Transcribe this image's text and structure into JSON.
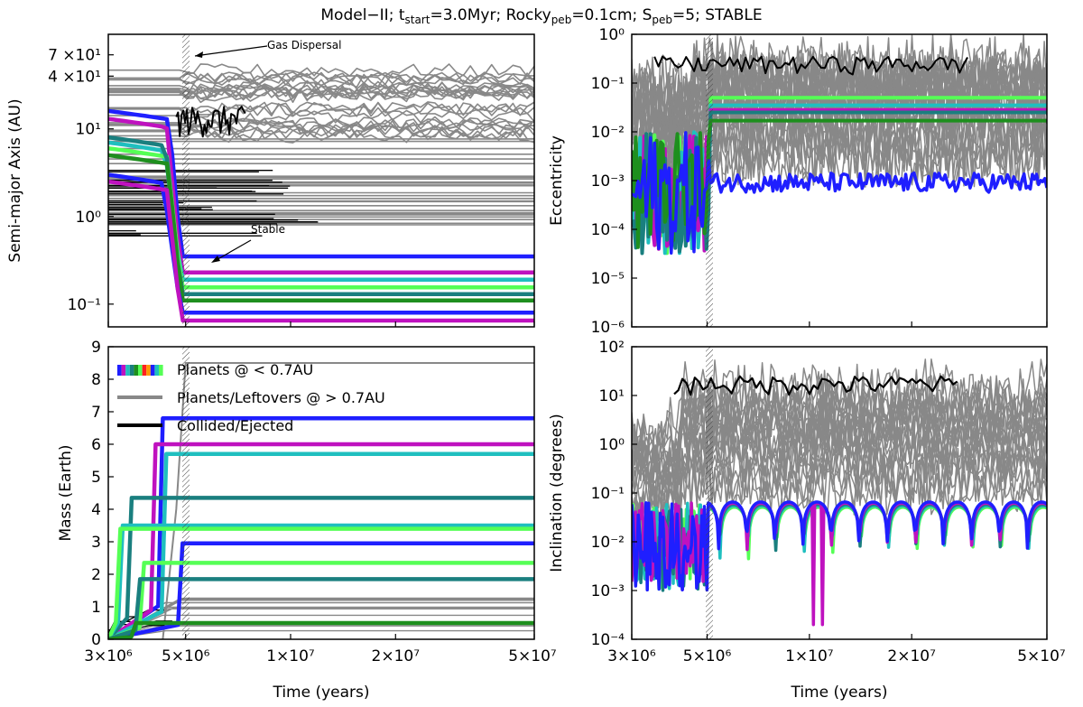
{
  "figure_title": "Model−II; t",
  "title_parts": {
    "pre": "Model−II; t",
    "sub1": "start",
    "mid1": "=3.0Myr; Rocky",
    "sub2": "peb",
    "mid2": "=0.1cm; S",
    "sub3": "peb",
    "post": "=5; STABLE"
  },
  "colors": {
    "gray": "#888888",
    "black": "#000000",
    "blue": "#1f1fff",
    "magenta": "#bf12bf",
    "cyan": "#1fbfbf",
    "teal": "#1a7f7f",
    "green": "#1e8f1e",
    "lightgreen": "#55ff55"
  },
  "chart_data": [
    {
      "type": "line",
      "panel": "top-left",
      "xlabel": "",
      "ylabel": "Semi-major Axis (AU)",
      "xscale": "log",
      "yscale": "log",
      "xlim": [
        3000000,
        50000000
      ],
      "ylim": [
        0.055,
        120
      ],
      "ytick_labels": [
        "7 ×10¹",
        "4 ×10¹",
        "10¹",
        "10⁰",
        "10⁻¹"
      ],
      "annotations": [
        "Gas Dispersal",
        "Stable"
      ],
      "gas_dispersal_time": 5000000,
      "series": [
        {
          "name": "blue",
          "color": "blue",
          "final": 0.35,
          "start": 16
        },
        {
          "name": "magenta",
          "color": "magenta",
          "final": 0.23,
          "start": 13
        },
        {
          "name": "cyan",
          "color": "cyan",
          "final": 0.19,
          "start": 7
        },
        {
          "name": "lightgreen",
          "color": "lightgreen",
          "final": 0.155,
          "start": 6
        },
        {
          "name": "teal",
          "color": "teal",
          "final": 0.13,
          "start": 8
        },
        {
          "name": "green",
          "color": "green",
          "final": 0.11,
          "start": 5
        },
        {
          "name": "blue2",
          "color": "blue",
          "final": 0.08,
          "start": 3
        },
        {
          "name": "magenta2",
          "color": "magenta",
          "final": 0.065,
          "start": 2.5
        }
      ]
    },
    {
      "type": "line",
      "panel": "top-right",
      "ylabel": "Eccentricity",
      "xscale": "log",
      "yscale": "log",
      "xlim": [
        3000000,
        50000000
      ],
      "ylim": [
        1e-06,
        1
      ],
      "ytick_labels": [
        "10⁰",
        "10⁻¹",
        "10⁻²",
        "10⁻³",
        "10⁻⁴",
        "10⁻⁵",
        "10⁻⁶"
      ],
      "series": [
        {
          "name": "lightgreen",
          "color": "lightgreen",
          "final": 0.05
        },
        {
          "name": "cyan",
          "color": "cyan",
          "final": 0.035
        },
        {
          "name": "magenta",
          "color": "magenta",
          "final": 0.028
        },
        {
          "name": "teal",
          "color": "teal",
          "final": 0.025
        },
        {
          "name": "green",
          "color": "green",
          "final": 0.017
        },
        {
          "name": "blue",
          "color": "blue",
          "final": 0.001
        }
      ]
    },
    {
      "type": "line",
      "panel": "bottom-left",
      "xlabel": "Time (years)",
      "ylabel": "Mass (Earth)",
      "xscale": "log",
      "yscale": "linear",
      "xlim": [
        3000000,
        50000000
      ],
      "ylim": [
        0,
        9
      ],
      "yticks": [
        0,
        1,
        2,
        3,
        4,
        5,
        6,
        7,
        8,
        9
      ],
      "xtick_labels": [
        "3×10⁶",
        "5×10⁶",
        "1×10⁷",
        "2×10⁷",
        "5×10⁷"
      ],
      "legend": [
        "Planets @ < 0.7AU",
        "Planets/Leftovers @ > 0.7AU",
        "Collided/Ejected"
      ],
      "series": [
        {
          "name": "blue",
          "color": "blue",
          "final": 6.8,
          "t_grow": 4300000
        },
        {
          "name": "magenta",
          "color": "magenta",
          "final": 6.0,
          "t_grow": 4100000
        },
        {
          "name": "cyan",
          "color": "cyan",
          "final": 5.7,
          "t_grow": 4400000
        },
        {
          "name": "teal",
          "color": "teal",
          "final": 4.35,
          "t_grow": 3500000
        },
        {
          "name": "cyan2",
          "color": "cyan",
          "final": 3.5,
          "t_grow": 3300000
        },
        {
          "name": "lightgreen",
          "color": "lightgreen",
          "final": 3.4,
          "t_grow": 3250000
        },
        {
          "name": "blue2",
          "color": "blue",
          "final": 2.95,
          "t_grow": 4900000
        },
        {
          "name": "lightgreen2",
          "color": "lightgreen",
          "final": 2.35,
          "t_grow": 3800000
        },
        {
          "name": "teal2",
          "color": "teal",
          "final": 1.85,
          "t_grow": 3700000
        },
        {
          "name": "green",
          "color": "green",
          "final": 0.5,
          "t_grow": 3600000
        }
      ]
    },
    {
      "type": "line",
      "panel": "bottom-right",
      "xlabel": "Time (years)",
      "ylabel": "Inclination (degrees)",
      "xscale": "log",
      "yscale": "log",
      "xlim": [
        3000000,
        50000000
      ],
      "ylim": [
        0.0001,
        100
      ],
      "ytick_labels": [
        "10²",
        "10¹",
        "10⁰",
        "10⁻¹",
        "10⁻²",
        "10⁻³",
        "10⁻⁴"
      ],
      "xtick_labels": [
        "3×10⁶",
        "5×10⁶",
        "1×10⁷",
        "2×10⁷",
        "5×10⁷"
      ],
      "series": [
        {
          "name": "planets",
          "color": "blue",
          "final": 0.05
        }
      ]
    }
  ]
}
